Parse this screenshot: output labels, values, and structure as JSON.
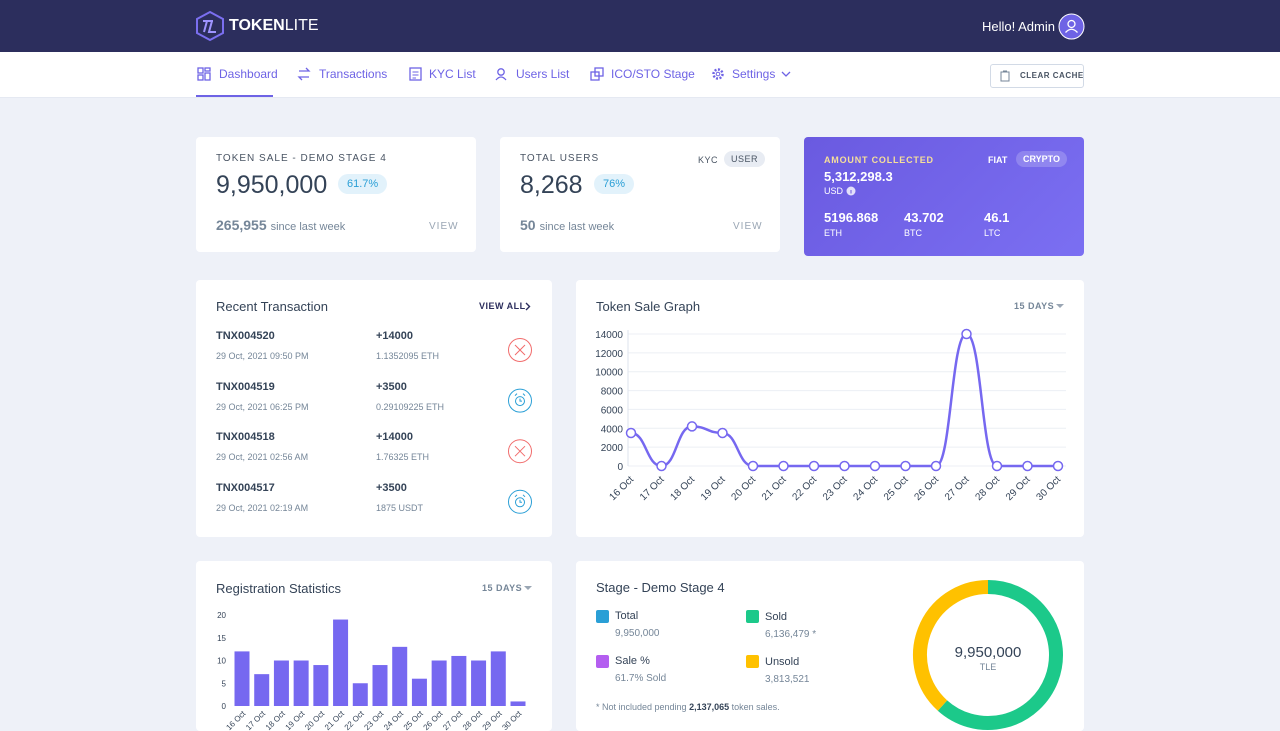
{
  "header": {
    "brand_a": "TOKEN",
    "brand_b": "LITE",
    "greeting": "Hello! Admin"
  },
  "nav": {
    "items": [
      "Dashboard",
      "Transactions",
      "KYC List",
      "Users List",
      "ICO/STO Stage",
      "Settings"
    ],
    "button": "CLEAR CACHE"
  },
  "cards": [
    {
      "title": "TOKEN SALE - DEMO STAGE 4",
      "value": "9,950,000",
      "badge": "61.7%",
      "change": "265,955",
      "change_text": "since last week",
      "link": "VIEW"
    },
    {
      "title": "TOTAL USERS",
      "tabs": [
        "KYC",
        "USER"
      ],
      "value": "8,268",
      "badge": "76%",
      "change": "50",
      "change_text": "since last week",
      "link": "VIEW"
    },
    {
      "title": "AMOUNT COLLECTED",
      "tabs": [
        "FIAT",
        "CRYPTO"
      ],
      "value": "5,312,298.3",
      "unit": "USD",
      "items": [
        {
          "value": "5196.868",
          "unit": "ETH"
        },
        {
          "value": "43.702",
          "unit": "BTC"
        },
        {
          "value": "46.1",
          "unit": "LTC"
        }
      ]
    }
  ],
  "transactions": {
    "title": "Recent Transaction",
    "link": "VIEW ALL",
    "rows": [
      {
        "id": "TNX004520",
        "date": "29 Oct, 2021 09:50 PM",
        "amount": "+14000",
        "crypto": "1.1352095 ETH"
      },
      {
        "id": "TNX004519",
        "date": "29 Oct, 2021 06:25 PM",
        "amount": "+3500",
        "crypto": "0.29109225 ETH"
      },
      {
        "id": "TNX004518",
        "date": "29 Oct, 2021 02:56 AM",
        "amount": "+14000",
        "crypto": "1.76325 ETH"
      },
      {
        "id": "TNX004517",
        "date": "29 Oct, 2021 02:19 AM",
        "amount": "+3500",
        "crypto": "1875 USDT"
      }
    ]
  },
  "stage": {
    "total": {
      "label": "Total",
      "value": "9,950,000"
    },
    "sale": {
      "label": "Sale %",
      "value": "61.7% Sold"
    },
    "note_a": "* Not included pending",
    "note_b": "2,137,065",
    "note_c": "token sales."
  },
  "chart_data": [
    {
      "type": "line",
      "title": "Token Sale Graph",
      "period": "15 DAYS",
      "color": "#7668f0",
      "grid": true,
      "categories": [
        "16 Oct",
        "17 Oct",
        "18 Oct",
        "19 Oct",
        "20 Oct",
        "21 Oct",
        "22 Oct",
        "23 Oct",
        "24 Oct",
        "25 Oct",
        "26 Oct",
        "27 Oct",
        "28 Oct",
        "29 Oct",
        "30 Oct"
      ],
      "values": [
        3500,
        0,
        4200,
        3500,
        0,
        0,
        0,
        0,
        0,
        0,
        0,
        14000,
        0,
        0,
        0
      ],
      "ylim": [
        0,
        14000
      ],
      "yticks": [
        0,
        2000,
        4000,
        6000,
        8000,
        10000,
        12000,
        14000
      ]
    },
    {
      "type": "bar",
      "title": "Registration Statistics",
      "period": "15 DAYS",
      "color": "#7668f0",
      "grid": false,
      "categories": [
        "16 Oct",
        "17 Oct",
        "18 Oct",
        "19 Oct",
        "20 Oct",
        "21 Oct",
        "22 Oct",
        "23 Oct",
        "24 Oct",
        "25 Oct",
        "26 Oct",
        "27 Oct",
        "28 Oct",
        "29 Oct",
        "30 Oct"
      ],
      "values": [
        12,
        7,
        10,
        10,
        9,
        19,
        5,
        9,
        13,
        6,
        10,
        11,
        10,
        12,
        1
      ],
      "ylim": [
        0,
        20
      ],
      "yticks": [
        0,
        5,
        10,
        15,
        20
      ]
    },
    {
      "type": "pie",
      "title": "Stage - Demo Stage 4",
      "categories": [
        "Sold",
        "Unsold"
      ],
      "values": [
        6136479,
        3813521
      ],
      "value_labels": [
        "6,136,479 *",
        "3,813,521"
      ],
      "colors": [
        "#1cc98a",
        "#ffc100"
      ],
      "center_label": "9,950,000",
      "center_unit": "TLE"
    }
  ]
}
